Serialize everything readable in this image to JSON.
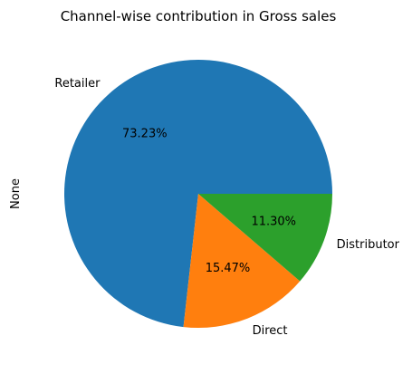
{
  "chart_data": {
    "type": "pie",
    "title": "Channel-wise contribution in Gross sales",
    "ylabel": "None",
    "categories": [
      "Retailer",
      "Direct",
      "Distributor"
    ],
    "values": [
      73.23,
      15.47,
      11.3
    ],
    "percent_labels": [
      "73.23%",
      "15.47%",
      "11.30%"
    ],
    "colors": [
      "#1f77b4",
      "#ff7f0e",
      "#2ca02c"
    ],
    "start_angle_deg": 0,
    "direction": "counterclockwise",
    "legend": "none"
  }
}
